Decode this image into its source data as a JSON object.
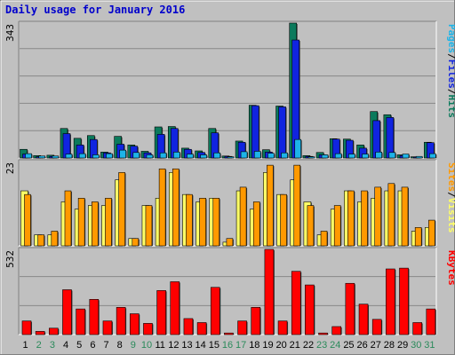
{
  "chart_data": {
    "type": "bar",
    "title": "Daily usage for January 2016",
    "categories": [
      "1",
      "2",
      "3",
      "4",
      "5",
      "6",
      "7",
      "8",
      "9",
      "10",
      "11",
      "12",
      "13",
      "14",
      "15",
      "16",
      "17",
      "18",
      "19",
      "20",
      "21",
      "22",
      "23",
      "24",
      "25",
      "26",
      "27",
      "28",
      "29",
      "30",
      "31"
    ],
    "weekend_days": [
      2,
      3,
      9,
      10,
      16,
      17,
      23,
      24,
      30,
      31
    ],
    "colors": {
      "hits": "#0b7a5c",
      "files": "#1024e0",
      "pages": "#1db4e8",
      "visits": "#ff9900",
      "sites": "#ffff66",
      "kbytes": "#ff0000",
      "weekend_label": "#2a8a5a",
      "weekday_label": "#000000"
    },
    "panels": [
      {
        "id": "hits",
        "ymax_label": "343",
        "ymax": 343,
        "legend": [
          {
            "text": "Pages",
            "color": "#1db4e8"
          },
          {
            "text": "/",
            "color": "#000000"
          },
          {
            "text": "Files",
            "color": "#1024e0"
          },
          {
            "text": "/",
            "color": "#000000"
          },
          {
            "text": "Hits",
            "color": "#0b7a5c"
          }
        ],
        "series": [
          {
            "name": "Hits",
            "values": [
              22,
              6,
              7,
              75,
              50,
              57,
              15,
              55,
              33,
              17,
              79,
              80,
              25,
              18,
              75,
              5,
              43,
              134,
              21,
              132,
              343,
              6,
              14,
              49,
              48,
              33,
              118,
              110,
              8,
              3,
              40
            ]
          },
          {
            "name": "Files",
            "values": [
              10,
              3,
              4,
              62,
              33,
              47,
              13,
              35,
              30,
              13,
              60,
              75,
              22,
              14,
              64,
              4,
              40,
              133,
              15,
              130,
              300,
              4,
              8,
              48,
              45,
              25,
              95,
              103,
              6,
              2,
              39
            ]
          },
          {
            "name": "Pages",
            "values": [
              11,
              5,
              5,
              10,
              11,
              8,
              11,
              20,
              14,
              8,
              13,
              15,
              10,
              8,
              13,
              3,
              16,
              17,
              12,
              13,
              47,
              3,
              8,
              11,
              10,
              10,
              15,
              14,
              10,
              4,
              11
            ]
          }
        ]
      },
      {
        "id": "visits",
        "ymax_label": "23",
        "ymax": 23,
        "legend": [
          {
            "text": "Sites",
            "color": "#ff9900"
          },
          {
            "text": "/",
            "color": "#000000"
          },
          {
            "text": "Visits",
            "color": "#ffff66"
          }
        ],
        "series": [
          {
            "name": "Visits",
            "values": [
              15,
              3,
              3,
              12,
              10,
              11,
              11,
              18,
              2,
              11,
              13,
              20,
              14,
              12,
              13,
              1,
              15,
              10,
              20,
              14,
              18,
              12,
              3,
              10,
              15,
              12,
              13,
              15,
              15,
              4,
              5
            ]
          },
          {
            "name": "Sites",
            "values": [
              14,
              3,
              4,
              15,
              13,
              12,
              13,
              20,
              2,
              11,
              21,
              21,
              14,
              13,
              13,
              2,
              16,
              12,
              22,
              14,
              22,
              11,
              4,
              11,
              15,
              15,
              16,
              17,
              16,
              5,
              7
            ]
          }
        ]
      },
      {
        "id": "kbytes",
        "ymax_label": "532",
        "ymax": 532,
        "legend": [
          {
            "text": "KBytes",
            "color": "#ff0000"
          }
        ],
        "series": [
          {
            "name": "KBytes",
            "values": [
              85,
              20,
              40,
              280,
              160,
              220,
              85,
              170,
              130,
              70,
              275,
              330,
              100,
              75,
              295,
              10,
              85,
              170,
              532,
              85,
              395,
              310,
              10,
              50,
              320,
              190,
              95,
              410,
              415,
              75,
              160
            ]
          }
        ]
      }
    ]
  }
}
